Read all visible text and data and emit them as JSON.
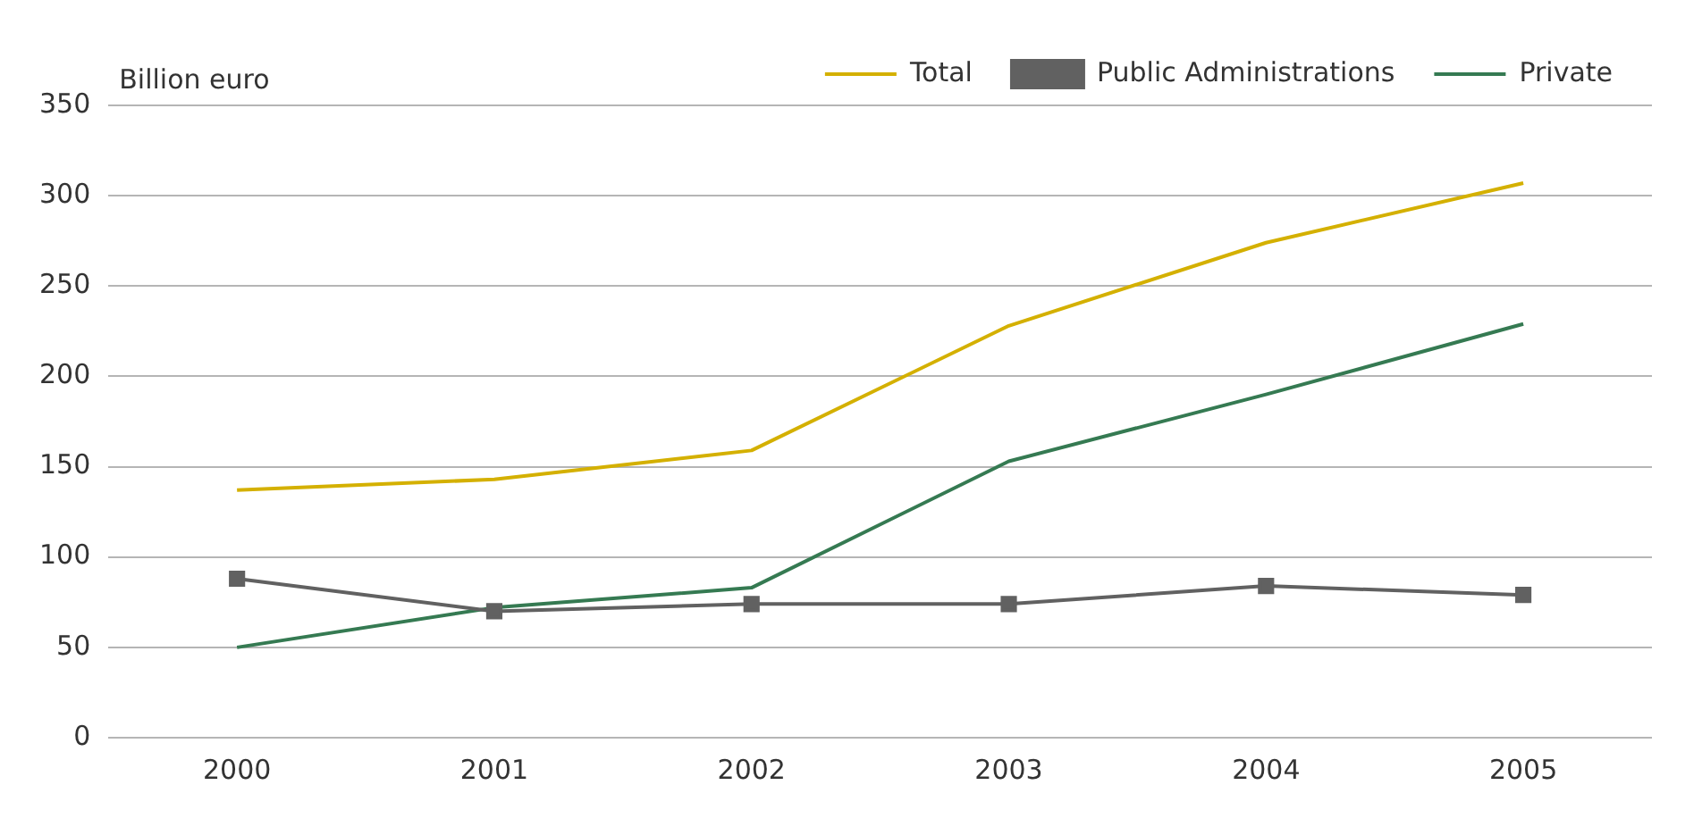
{
  "chart_data": {
    "type": "line",
    "ylabel": "Billion euro",
    "categories": [
      "2000",
      "2001",
      "2002",
      "2003",
      "2004",
      "2005"
    ],
    "series": [
      {
        "name": "Total",
        "color": "#d4b000",
        "marker": "none",
        "values": [
          137,
          143,
          159,
          228,
          274,
          307
        ]
      },
      {
        "name": "Public Administrations",
        "color": "#616161",
        "marker": "square",
        "values": [
          88,
          70,
          74,
          74,
          84,
          79
        ]
      },
      {
        "name": "Private",
        "color": "#357a52",
        "marker": "none",
        "values": [
          50,
          72,
          83,
          153,
          190,
          229
        ]
      }
    ],
    "ylim": [
      0,
      350
    ],
    "yticks": [
      0,
      50,
      100,
      150,
      200,
      250,
      300,
      350
    ],
    "grid": "y",
    "legend": "top right",
    "line_style": "solid"
  }
}
